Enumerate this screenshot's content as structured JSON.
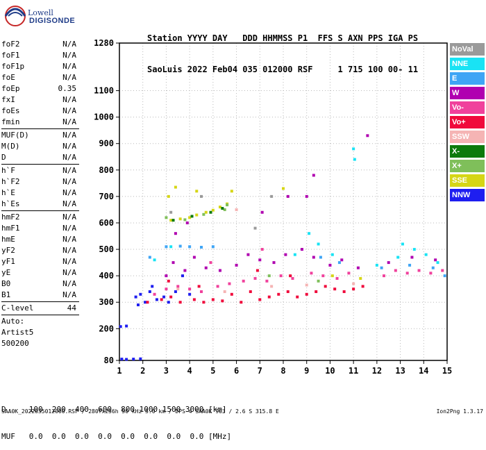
{
  "logo": {
    "top": "Lowell",
    "bottom": "DIGISONDE"
  },
  "header": {
    "line1": "Station YYYY DAY   DDD HHMMSS P1  FFS S AXN PPS IGA PS",
    "line2": "SaoLuis 2022 Feb04 035 012000 RSF     1 715 100 00- 11"
  },
  "params": [
    {
      "label": "foF2",
      "value": "N/A"
    },
    {
      "label": "foF1",
      "value": "N/A"
    },
    {
      "label": "foF1p",
      "value": "N/A"
    },
    {
      "label": "foE",
      "value": "N/A"
    },
    {
      "label": "foEp",
      "value": "0.35"
    },
    {
      "label": "fxI",
      "value": "N/A"
    },
    {
      "label": "foEs",
      "value": "N/A"
    },
    {
      "label": "fmin",
      "value": "N/A",
      "sep": true
    },
    {
      "label": "MUF(D)",
      "value": "N/A"
    },
    {
      "label": "M(D)",
      "value": "N/A"
    },
    {
      "label": "D",
      "value": "N/A",
      "sep": true
    },
    {
      "label": "h`F",
      "value": "N/A"
    },
    {
      "label": "h`F2",
      "value": "N/A"
    },
    {
      "label": "h`E",
      "value": "N/A"
    },
    {
      "label": "h`Es",
      "value": "N/A",
      "sep": true
    },
    {
      "label": "hmF2",
      "value": "N/A"
    },
    {
      "label": "hmF1",
      "value": "N/A"
    },
    {
      "label": "hmE",
      "value": "N/A"
    },
    {
      "label": "yF2",
      "value": "N/A"
    },
    {
      "label": "yF1",
      "value": "N/A"
    },
    {
      "label": "yE",
      "value": "N/A"
    },
    {
      "label": "B0",
      "value": "N/A"
    },
    {
      "label": "B1",
      "value": "N/A",
      "sep": true
    },
    {
      "label": "C-level",
      "value": "44",
      "sep": true
    },
    {
      "label": "Auto:",
      "value": ""
    },
    {
      "label": "Artist5",
      "value": ""
    },
    {
      "label": "500200",
      "value": ""
    }
  ],
  "legend": [
    {
      "label": "NoVal",
      "color": "#9a9a9a"
    },
    {
      "label": "NNE",
      "color": "#19e3f4"
    },
    {
      "label": "E",
      "color": "#3fa5f5"
    },
    {
      "label": "W",
      "color": "#b000b0"
    },
    {
      "label": "Vo-",
      "color": "#f0419c"
    },
    {
      "label": "Vo+",
      "color": "#f00a3c"
    },
    {
      "label": "SSW",
      "color": "#f5b4b4"
    },
    {
      "label": "X-",
      "color": "#0c7a0c"
    },
    {
      "label": "X+",
      "color": "#7fbf5a"
    },
    {
      "label": "SSE",
      "color": "#d6d616"
    },
    {
      "label": "NNW",
      "color": "#1e1ef0"
    }
  ],
  "dtable": {
    "row1": "D     100  200  400  600  800 1000 1500 3000 [km]",
    "row2": "MUF   0.0  0.0  0.0  0.0  0.0  0.0  0.0  0.0 [MHz]"
  },
  "footer": {
    "left": "SAA0K_2022035012000.RSF / 280fx256h 50 kHz 5.0 km / DPS-4 SAA0K 903 / 2.6 S 315.8 E",
    "right": "Ion2Png 1.3.17"
  },
  "chart_data": {
    "type": "scatter",
    "title": "",
    "xlabel": "",
    "ylabel": "",
    "xlim": [
      1,
      15
    ],
    "ylim": [
      80,
      1280
    ],
    "x_ticks": [
      1,
      2,
      3,
      4,
      5,
      6,
      7,
      8,
      9,
      10,
      11,
      12,
      13,
      14,
      15
    ],
    "y_ticks": [
      80,
      200,
      300,
      400,
      500,
      600,
      700,
      800,
      900,
      1000,
      1100,
      1280
    ],
    "y_tick_labels": [
      "80",
      "200",
      "300",
      "400",
      "500",
      "600",
      "700",
      "800",
      "900",
      "1000",
      "1100",
      "1280"
    ],
    "grid": true,
    "series": [
      {
        "name": "NNW",
        "color": "#1e1ef0",
        "points": [
          [
            1.1,
            85
          ],
          [
            1.3,
            84
          ],
          [
            1.6,
            85
          ],
          [
            1.9,
            86
          ],
          [
            1.05,
            208
          ],
          [
            1.3,
            210
          ],
          [
            1.7,
            320
          ],
          [
            1.9,
            330
          ],
          [
            2.1,
            300
          ],
          [
            2.3,
            340
          ],
          [
            2.6,
            310
          ],
          [
            2.9,
            320
          ],
          [
            1.8,
            290
          ],
          [
            2.4,
            360
          ],
          [
            3.1,
            300
          ],
          [
            3.4,
            340
          ],
          [
            4.0,
            330
          ],
          [
            3.7,
            400
          ]
        ]
      },
      {
        "name": "Vo+",
        "color": "#f00a3c",
        "points": [
          [
            2.2,
            300
          ],
          [
            2.8,
            310
          ],
          [
            3.2,
            320
          ],
          [
            3.6,
            300
          ],
          [
            4.2,
            310
          ],
          [
            4.6,
            300
          ],
          [
            5.0,
            310
          ],
          [
            5.4,
            305
          ],
          [
            5.8,
            330
          ],
          [
            6.2,
            300
          ],
          [
            6.6,
            340
          ],
          [
            7.0,
            310
          ],
          [
            7.4,
            320
          ],
          [
            7.8,
            330
          ],
          [
            8.2,
            340
          ],
          [
            8.6,
            320
          ],
          [
            9.0,
            330
          ],
          [
            9.4,
            340
          ],
          [
            9.8,
            360
          ],
          [
            10.2,
            350
          ],
          [
            10.6,
            340
          ],
          [
            11.0,
            350
          ],
          [
            11.4,
            360
          ],
          [
            3.1,
            380
          ],
          [
            4.4,
            360
          ],
          [
            6.9,
            420
          ],
          [
            8.3,
            400
          ]
        ]
      },
      {
        "name": "Vo-",
        "color": "#f0419c",
        "points": [
          [
            2.5,
            330
          ],
          [
            3.0,
            350
          ],
          [
            3.5,
            360
          ],
          [
            4.0,
            350
          ],
          [
            4.5,
            340
          ],
          [
            5.2,
            360
          ],
          [
            5.7,
            370
          ],
          [
            6.3,
            380
          ],
          [
            6.8,
            390
          ],
          [
            7.3,
            380
          ],
          [
            7.9,
            400
          ],
          [
            8.4,
            390
          ],
          [
            9.2,
            410
          ],
          [
            9.7,
            400
          ],
          [
            10.3,
            390
          ],
          [
            10.8,
            410
          ],
          [
            12.3,
            400
          ],
          [
            12.8,
            420
          ],
          [
            13.3,
            410
          ],
          [
            13.8,
            420
          ],
          [
            14.3,
            410
          ],
          [
            14.8,
            420
          ],
          [
            4.9,
            450
          ],
          [
            7.1,
            500
          ]
        ]
      },
      {
        "name": "W",
        "color": "#b000b0",
        "points": [
          [
            3.0,
            400
          ],
          [
            3.3,
            450
          ],
          [
            3.8,
            420
          ],
          [
            4.2,
            470
          ],
          [
            4.7,
            430
          ],
          [
            5.3,
            420
          ],
          [
            6.0,
            440
          ],
          [
            6.5,
            480
          ],
          [
            7.0,
            460
          ],
          [
            7.6,
            450
          ],
          [
            8.1,
            480
          ],
          [
            8.8,
            500
          ],
          [
            9.3,
            470
          ],
          [
            10.0,
            440
          ],
          [
            10.5,
            460
          ],
          [
            11.2,
            430
          ],
          [
            12.5,
            450
          ],
          [
            13.5,
            470
          ],
          [
            14.5,
            460
          ],
          [
            3.4,
            560
          ],
          [
            3.9,
            600
          ],
          [
            7.1,
            640
          ],
          [
            8.2,
            700
          ],
          [
            9.0,
            700
          ],
          [
            9.3,
            780
          ],
          [
            11.6,
            930
          ]
        ]
      },
      {
        "name": "NNE",
        "color": "#19e3f4",
        "points": [
          [
            9.1,
            560
          ],
          [
            9.5,
            520
          ],
          [
            10.1,
            480
          ],
          [
            11.0,
            880
          ],
          [
            11.05,
            840
          ],
          [
            12.0,
            440
          ],
          [
            12.9,
            470
          ],
          [
            13.1,
            520
          ],
          [
            13.6,
            500
          ],
          [
            14.1,
            480
          ],
          [
            14.6,
            450
          ],
          [
            2.5,
            460
          ],
          [
            3.2,
            510
          ],
          [
            8.5,
            480
          ]
        ]
      },
      {
        "name": "E",
        "color": "#3fa5f5",
        "points": [
          [
            2.3,
            470
          ],
          [
            3.0,
            510
          ],
          [
            3.6,
            512
          ],
          [
            4.0,
            510
          ],
          [
            4.5,
            508
          ],
          [
            5.0,
            510
          ],
          [
            9.6,
            470
          ],
          [
            10.4,
            450
          ],
          [
            12.2,
            430
          ],
          [
            13.4,
            440
          ],
          [
            14.4,
            430
          ],
          [
            14.9,
            400
          ]
        ]
      },
      {
        "name": "SSE",
        "color": "#d6d616",
        "points": [
          [
            3.2,
            610
          ],
          [
            3.6,
            615
          ],
          [
            4.0,
            620
          ],
          [
            4.3,
            630
          ],
          [
            4.7,
            640
          ],
          [
            5.0,
            648
          ],
          [
            5.3,
            660
          ],
          [
            5.6,
            672
          ],
          [
            3.1,
            700
          ],
          [
            3.4,
            735
          ],
          [
            4.3,
            720
          ],
          [
            5.8,
            720
          ],
          [
            8.0,
            730
          ],
          [
            10.1,
            400
          ],
          [
            11.3,
            390
          ]
        ]
      },
      {
        "name": "X+",
        "color": "#7fbf5a",
        "points": [
          [
            3.0,
            620
          ],
          [
            3.8,
            612
          ],
          [
            4.6,
            632
          ],
          [
            5.5,
            650
          ],
          [
            5.6,
            668
          ],
          [
            7.4,
            400
          ],
          [
            9.5,
            380
          ]
        ]
      },
      {
        "name": "X-",
        "color": "#0c7a0c",
        "points": [
          [
            3.3,
            610
          ],
          [
            4.1,
            625
          ],
          [
            4.9,
            640
          ],
          [
            5.4,
            655
          ]
        ]
      },
      {
        "name": "SSW",
        "color": "#f5b4b4",
        "points": [
          [
            3.5,
            350
          ],
          [
            5.5,
            340
          ],
          [
            7.5,
            360
          ],
          [
            9.0,
            365
          ],
          [
            11.0,
            370
          ],
          [
            6.0,
            650
          ]
        ]
      },
      {
        "name": "NoVal",
        "color": "#9a9a9a",
        "points": [
          [
            3.2,
            640
          ],
          [
            4.5,
            700
          ],
          [
            6.8,
            580
          ],
          [
            7.5,
            700
          ]
        ]
      }
    ]
  }
}
